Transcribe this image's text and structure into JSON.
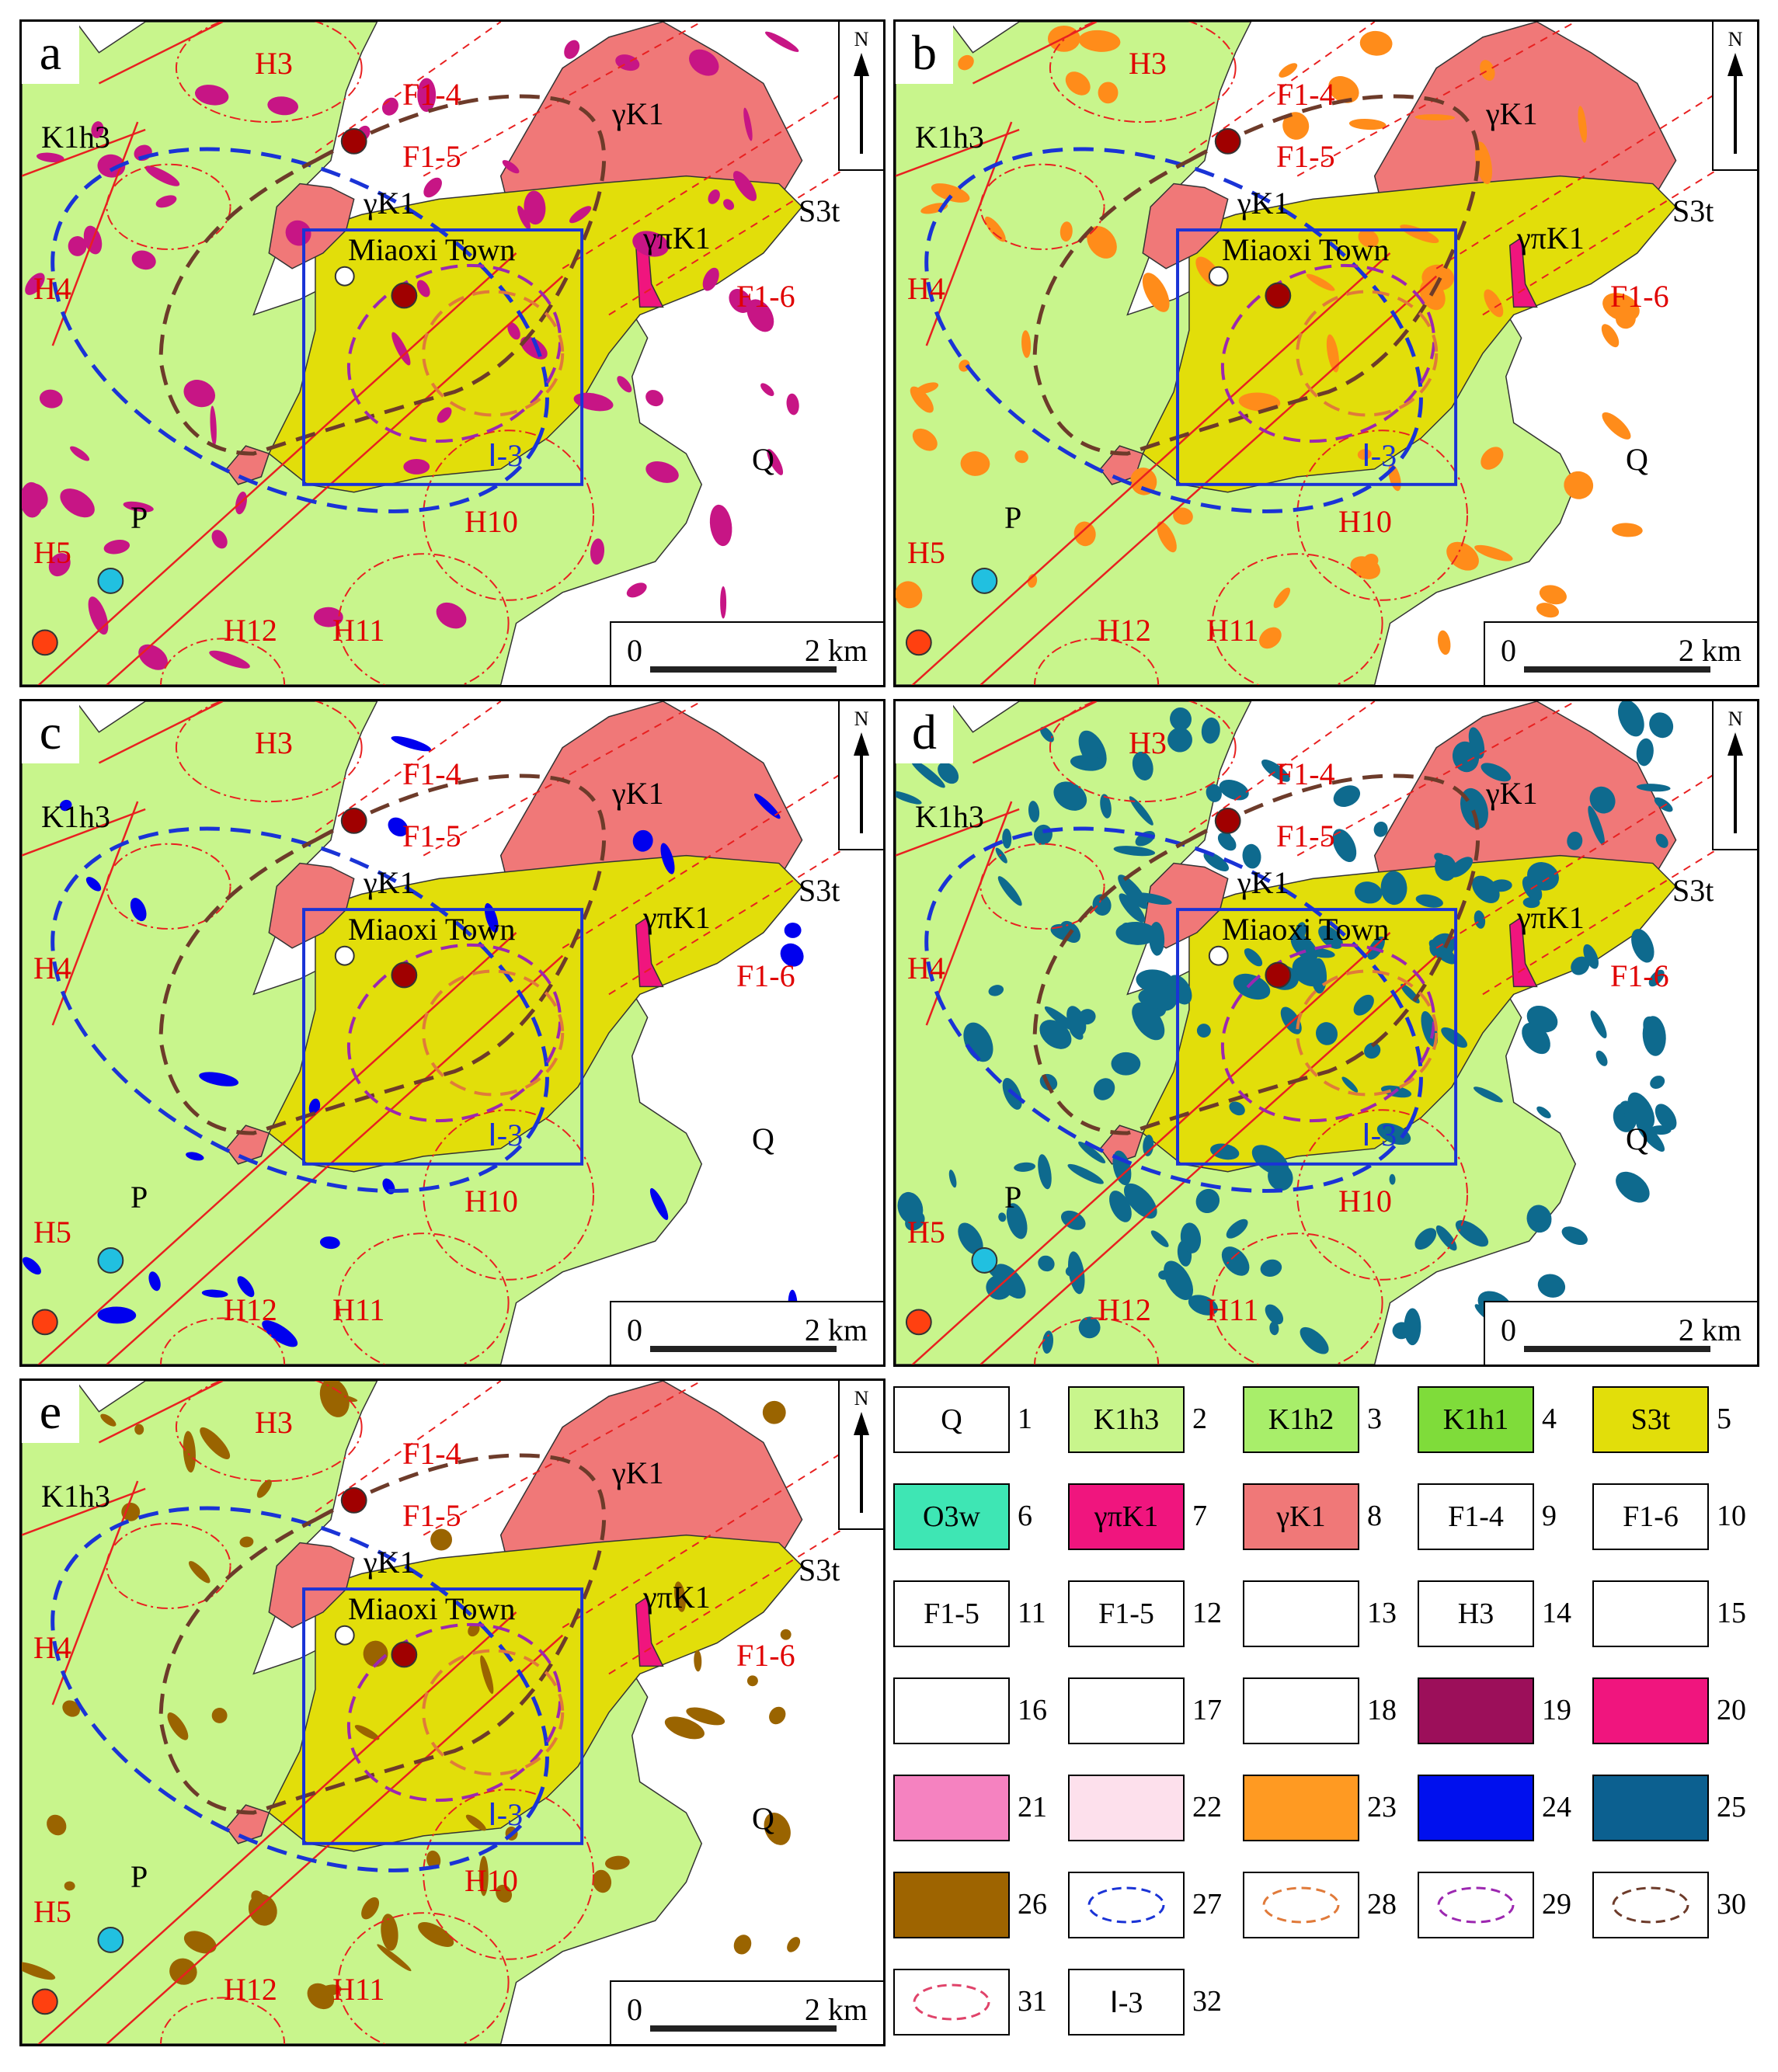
{
  "panels": [
    {
      "id": "a",
      "label": "a",
      "anomaly_color": "#c71585"
    },
    {
      "id": "b",
      "label": "b",
      "anomaly_color": "#ff8c1a"
    },
    {
      "id": "c",
      "label": "c",
      "anomaly_color": "#0000ee"
    },
    {
      "id": "d",
      "label": "d",
      "anomaly_color": "#0e6a8e"
    },
    {
      "id": "e",
      "label": "e",
      "anomaly_color": "#9a6400"
    }
  ],
  "map_text": {
    "town": "Miaoxi Town",
    "north": "N",
    "scale_zero": "0",
    "scale_end": "2 km",
    "area_code": "Ⅰ-3",
    "Q": "Q",
    "P": "P",
    "H3": "H3",
    "H4": "H4",
    "H5": "H5",
    "H10": "H10",
    "H11": "H11",
    "H12": "H12",
    "F14": "F1-4",
    "F15": "F1-5",
    "F16": "F1-6",
    "gK1": "γK1",
    "gpK1": "γπK1",
    "S3t": "S3t",
    "K1h3": "K1h3"
  },
  "legend": [
    {
      "num": "1",
      "text": "Q",
      "fill": "#ffffff"
    },
    {
      "num": "2",
      "text": "K1h3",
      "fill": "#c8f58c"
    },
    {
      "num": "3",
      "text": "K1h2",
      "fill": "#a8ee6a"
    },
    {
      "num": "4",
      "text": "K1h1",
      "fill": "#7fdc3a"
    },
    {
      "num": "5",
      "text": "S3t",
      "fill": "#e2de0a"
    },
    {
      "num": "6",
      "text": "O3w",
      "fill": "#3ee6b4"
    },
    {
      "num": "7",
      "text": "γπK1",
      "fill": "#f0157e"
    },
    {
      "num": "8",
      "text": "γK1",
      "fill": "#f07878"
    },
    {
      "num": "9",
      "text": "F1-4",
      "fill": "#ffffff"
    },
    {
      "num": "10",
      "text": "F1-6",
      "fill": "#ffffff"
    },
    {
      "num": "11",
      "text": "F1-5",
      "fill": "#ffffff"
    },
    {
      "num": "12",
      "text": "F1-5",
      "fill": "#ffffff"
    },
    {
      "num": "13",
      "text": "",
      "fill": "#ffffff"
    },
    {
      "num": "14",
      "text": "H3",
      "fill": "#ffffff"
    },
    {
      "num": "15",
      "text": "",
      "fill": "#ffffff"
    },
    {
      "num": "16",
      "text": "",
      "fill": "#ffffff"
    },
    {
      "num": "17",
      "text": "",
      "fill": "#ffffff"
    },
    {
      "num": "18",
      "text": "",
      "fill": "#ffffff"
    },
    {
      "num": "19",
      "text": "",
      "fill": "#9c0f5a"
    },
    {
      "num": "20",
      "text": "",
      "fill": "#f0157e"
    },
    {
      "num": "21",
      "text": "",
      "fill": "#f582c0"
    },
    {
      "num": "22",
      "text": "",
      "fill": "#fde0ec"
    },
    {
      "num": "23",
      "text": "",
      "fill": "#ff9a22"
    },
    {
      "num": "24",
      "text": "",
      "fill": "#0010ee"
    },
    {
      "num": "25",
      "text": "",
      "fill": "#0c6090"
    },
    {
      "num": "26",
      "text": "",
      "fill": "#9e6400"
    },
    {
      "num": "27",
      "text": "",
      "fill": "#ffffff",
      "ring": "#1a33d6"
    },
    {
      "num": "28",
      "text": "",
      "fill": "#ffffff",
      "ring": "#e07a3a"
    },
    {
      "num": "29",
      "text": "",
      "fill": "#ffffff",
      "ring": "#9c27b0"
    },
    {
      "num": "30",
      "text": "",
      "fill": "#ffffff",
      "ring": "#6d3b2a"
    },
    {
      "num": "31",
      "text": "",
      "fill": "#ffffff",
      "ring": "#e0436a"
    },
    {
      "num": "32",
      "text": "Ⅰ-3",
      "fill": "#ffffff"
    }
  ],
  "colors": {
    "q": "#ffffff",
    "k1h3": "#c8f58c",
    "s3t": "#e2de0a",
    "granite": "#f07878",
    "porphyry": "#f0157e",
    "fault": "#e82020",
    "box": "#1a33d6"
  }
}
